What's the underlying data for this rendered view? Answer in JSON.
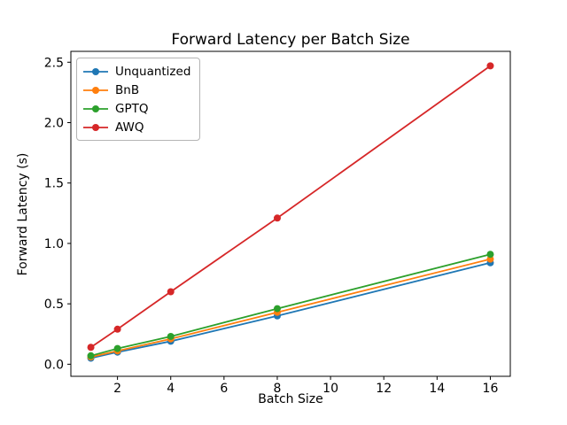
{
  "window": {
    "background": "#ffffff"
  },
  "chart_data": {
    "type": "line",
    "title": "Forward Latency per Batch Size",
    "xlabel": "Batch Size",
    "ylabel": "Forward Latency (s)",
    "x": [
      1,
      2,
      4,
      8,
      16
    ],
    "series": [
      {
        "name": "Unquantized",
        "color": "#1f77b4",
        "values": [
          0.05,
          0.1,
          0.19,
          0.4,
          0.84
        ]
      },
      {
        "name": "BnB",
        "color": "#ff7f0e",
        "values": [
          0.06,
          0.11,
          0.21,
          0.43,
          0.87
        ]
      },
      {
        "name": "GPTQ",
        "color": "#2ca02c",
        "values": [
          0.07,
          0.13,
          0.23,
          0.46,
          0.91
        ]
      },
      {
        "name": "AWQ",
        "color": "#d62728",
        "values": [
          0.14,
          0.29,
          0.6,
          1.21,
          2.47
        ]
      }
    ],
    "xticks": [
      "2",
      "4",
      "6",
      "8",
      "10",
      "12",
      "14",
      "16"
    ],
    "yticks": [
      "0.0",
      "0.5",
      "1.0",
      "1.5",
      "2.0",
      "2.5"
    ],
    "xlim": [
      0.25,
      16.75
    ],
    "ylim": [
      -0.1,
      2.59
    ],
    "grid": false,
    "marker": "o",
    "legend_position": "upper left",
    "axis_color": "#000000"
  }
}
